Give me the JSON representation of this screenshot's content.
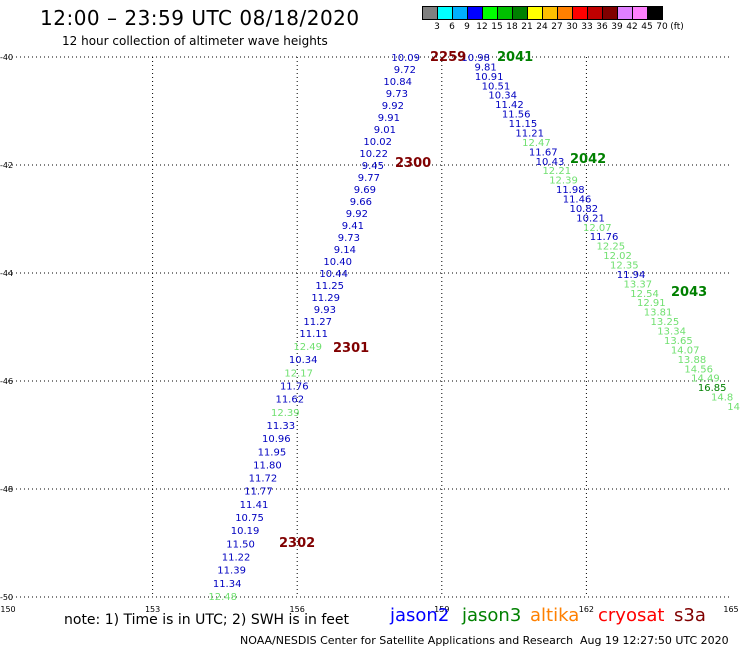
{
  "title": "12:00 – 23:59 UTC 08/18/2020",
  "subtitle": "12 hour collection of altimeter wave heights",
  "colorbar": {
    "colors": [
      "#808080",
      "#00ffff",
      "#00b0ff",
      "#0000ff",
      "#00ff00",
      "#00c000",
      "#008000",
      "#ffff00",
      "#ffc000",
      "#ff8000",
      "#ff0000",
      "#c00000",
      "#800000",
      "#e080ff",
      "#ff80ff",
      "#000000"
    ],
    "labels": [
      "3",
      "6",
      "9",
      "12",
      "15",
      "18",
      "21",
      "24",
      "27",
      "30",
      "33",
      "36",
      "39",
      "42",
      "45",
      "70",
      "(ft)"
    ]
  },
  "axes": {
    "lon_ticks": [
      "150",
      "153",
      "156",
      "159",
      "162",
      "165"
    ],
    "lat_ticks": [
      "-40",
      "-42",
      "-44",
      "-46",
      "-48",
      "-50"
    ],
    "lon_range": [
      150,
      165
    ],
    "lat_range": [
      -40,
      -50
    ],
    "grid": "dotted"
  },
  "tracks": [
    {
      "color": "#0000c0",
      "values": [
        "10.09",
        "9.72",
        "10.84",
        "9.73",
        "9.92",
        "9.91",
        "9.01",
        "10.02",
        "10.22",
        "9.45",
        "9.77",
        "9.69",
        "9.66",
        "9.92",
        "9.41",
        "9.73",
        "9.14",
        "10.40",
        "10.44",
        "11.25",
        "11.29",
        "9.93",
        "11.27",
        "11.11"
      ]
    },
    {
      "color": "#0000c0",
      "values_mixed": [
        {
          "v": "12.49",
          "c": "#70e070"
        },
        {
          "v": "10.34",
          "c": "#0000c0"
        },
        {
          "v": "12.17",
          "c": "#70e070"
        },
        {
          "v": "11.76",
          "c": "#0000c0"
        },
        {
          "v": "11.62",
          "c": "#0000c0"
        },
        {
          "v": "12.39",
          "c": "#70e070"
        },
        {
          "v": "11.33",
          "c": "#0000c0"
        },
        {
          "v": "10.96",
          "c": "#0000c0"
        },
        {
          "v": "11.95",
          "c": "#0000c0"
        },
        {
          "v": "11.80",
          "c": "#0000c0"
        },
        {
          "v": "11.72",
          "c": "#0000c0"
        },
        {
          "v": "11.77",
          "c": "#0000c0"
        },
        {
          "v": "11.41",
          "c": "#0000c0"
        },
        {
          "v": "10.75",
          "c": "#0000c0"
        },
        {
          "v": "10.19",
          "c": "#0000c0"
        },
        {
          "v": "11.50",
          "c": "#0000c0"
        },
        {
          "v": "11.22",
          "c": "#0000c0"
        },
        {
          "v": "11.39",
          "c": "#0000c0"
        },
        {
          "v": "11.34",
          "c": "#0000c0"
        },
        {
          "v": "12.48",
          "c": "#70e070"
        }
      ]
    },
    {
      "values_mixed": [
        {
          "v": "10.98",
          "c": "#0000c0"
        },
        {
          "v": "9.81",
          "c": "#0000c0"
        },
        {
          "v": "10.91",
          "c": "#0000c0"
        },
        {
          "v": "10.51",
          "c": "#0000c0"
        },
        {
          "v": "10.34",
          "c": "#0000c0"
        },
        {
          "v": "11.42",
          "c": "#0000c0"
        },
        {
          "v": "11.56",
          "c": "#0000c0"
        },
        {
          "v": "11.15",
          "c": "#0000c0"
        },
        {
          "v": "11.21",
          "c": "#0000c0"
        },
        {
          "v": "12.47",
          "c": "#70e070"
        },
        {
          "v": "11.67",
          "c": "#0000c0"
        },
        {
          "v": "10.43",
          "c": "#0000c0"
        },
        {
          "v": "12.21",
          "c": "#70e070"
        },
        {
          "v": "12.39",
          "c": "#70e070"
        },
        {
          "v": "11.98",
          "c": "#0000c0"
        },
        {
          "v": "11.46",
          "c": "#0000c0"
        },
        {
          "v": "10.82",
          "c": "#0000c0"
        },
        {
          "v": "10.21",
          "c": "#0000c0"
        },
        {
          "v": "12.07",
          "c": "#70e070"
        },
        {
          "v": "11.76",
          "c": "#0000c0"
        },
        {
          "v": "12.25",
          "c": "#70e070"
        },
        {
          "v": "12.02",
          "c": "#70e070"
        },
        {
          "v": "12.35",
          "c": "#70e070"
        },
        {
          "v": "11.94",
          "c": "#0000c0"
        },
        {
          "v": "13.37",
          "c": "#70e070"
        },
        {
          "v": "12.54",
          "c": "#70e070"
        },
        {
          "v": "12.91",
          "c": "#70e070"
        },
        {
          "v": "13.81",
          "c": "#70e070"
        },
        {
          "v": "13.25",
          "c": "#70e070"
        },
        {
          "v": "13.34",
          "c": "#70e070"
        },
        {
          "v": "13.65",
          "c": "#70e070"
        },
        {
          "v": "14.07",
          "c": "#70e070"
        },
        {
          "v": "13.88",
          "c": "#70e070"
        },
        {
          "v": "14.56",
          "c": "#70e070"
        },
        {
          "v": "14.49",
          "c": "#70e070"
        },
        {
          "v": "16.85",
          "c": "#008000"
        },
        {
          "v": "14.8",
          "c": "#70e070"
        },
        {
          "v": "14",
          "c": "#70e070"
        }
      ]
    }
  ],
  "pass_labels": [
    {
      "text": "2259",
      "color": "#800000"
    },
    {
      "text": "2041",
      "color": "#008000"
    },
    {
      "text": "2300",
      "color": "#800000"
    },
    {
      "text": "2042",
      "color": "#008000"
    },
    {
      "text": "2043",
      "color": "#008000"
    },
    {
      "text": "2301",
      "color": "#800000"
    },
    {
      "text": "2302",
      "color": "#800000"
    }
  ],
  "note": "note:  1) Time is in UTC;  2) SWH is in feet",
  "legend": [
    {
      "label": "jason2",
      "color": "#0000ff"
    },
    {
      "label": "jason3",
      "color": "#008000"
    },
    {
      "label": "altika",
      "color": "#ff8000"
    },
    {
      "label": "cryosat",
      "color": "#ff0000"
    },
    {
      "label": "s3a",
      "color": "#800000"
    }
  ],
  "footer": {
    "credit": "NOAA/NESDIS Center for Satellite Applications and Research",
    "timestamp": "Aug 19 12:27:50 UTC 2020"
  }
}
